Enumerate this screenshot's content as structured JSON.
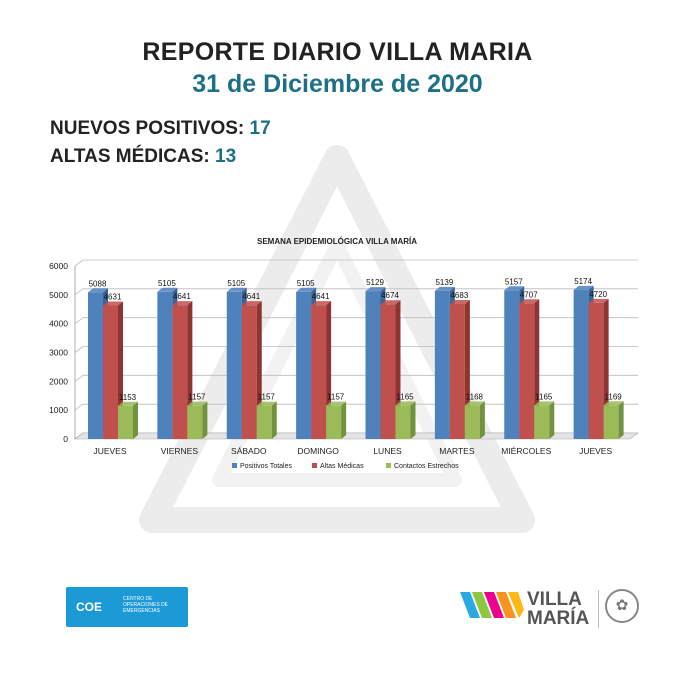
{
  "header": {
    "title": "REPORTE DIARIO VILLA MARIA",
    "date": "31 de Diciembre de 2020"
  },
  "stats": {
    "nuevos_label": "NUEVOS POSITIVOS:",
    "nuevos_value": "17",
    "altas_label": "ALTAS MÉDICAS:",
    "altas_value": "13"
  },
  "footer": {
    "coe_logo": "COE",
    "coe_subtitle": "CENTRO DE OPERACIONES DE EMERGENCIAS",
    "city_logo_line1": "VILLA",
    "city_logo_line2": "MARÍA"
  },
  "colors": {
    "title_accent": "#1d6f86",
    "series": [
      "#4f81bd",
      "#c0504d",
      "#9bbb59"
    ]
  },
  "chart_data": {
    "type": "bar",
    "title": "SEMANA EPIDEMIOLÓGICA VILLA MARÍA",
    "categories": [
      "JUEVES",
      "VIERNES",
      "SÁBADO",
      "DOMINGO",
      "LUNES",
      "MARTES",
      "MIÉRCOLES",
      "JUEVES"
    ],
    "series": [
      {
        "name": "Positivos Totales",
        "values": [
          5088,
          5105,
          5105,
          5105,
          5129,
          5139,
          5157,
          5174
        ]
      },
      {
        "name": "Altas Médicas",
        "values": [
          4631,
          4641,
          4641,
          4641,
          4674,
          4683,
          4707,
          4720
        ]
      },
      {
        "name": "Contactos Estrechos",
        "values": [
          1153,
          1157,
          1157,
          1157,
          1165,
          1168,
          1165,
          1169
        ]
      }
    ],
    "ylim": [
      0,
      6000
    ],
    "yticks": [
      0,
      1000,
      2000,
      3000,
      4000,
      5000,
      6000
    ],
    "grid": true,
    "legend": "bottom"
  }
}
